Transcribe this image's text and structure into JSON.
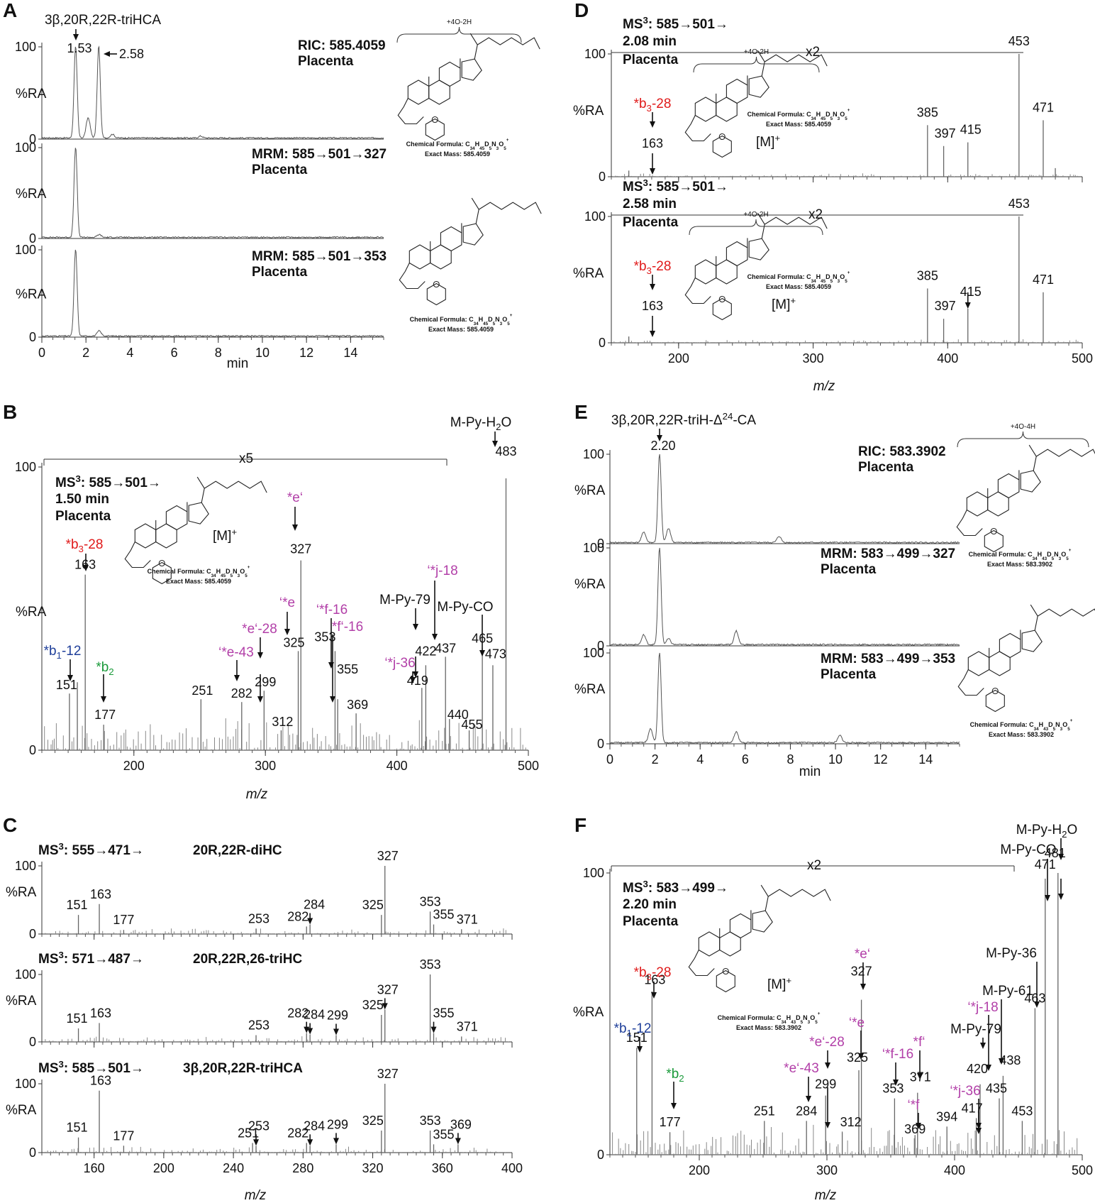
{
  "figure": {
    "panels": [
      {
        "letter": "A"
      },
      {
        "letter": "B"
      },
      {
        "letter": "C"
      },
      {
        "letter": "D"
      },
      {
        "letter": "E"
      },
      {
        "letter": "F"
      }
    ]
  },
  "chart_data": [
    {
      "panel": "A",
      "type": "line",
      "xlabel": "min",
      "ylabel": "%RA",
      "xlim": [
        0,
        15.5
      ],
      "ylim": [
        0,
        100
      ],
      "xticks": [
        0,
        2,
        4,
        6,
        8,
        10,
        12,
        14
      ],
      "compound": "3β,20R,22R-triHCA",
      "traces": [
        {
          "title_lines": [
            "RIC: 585.4059",
            "Placenta"
          ],
          "peaks": [
            [
              1.53,
              100,
              "1.53"
            ],
            [
              2.58,
              100,
              "2.58"
            ],
            [
              2.1,
              22,
              ""
            ],
            [
              3.2,
              4,
              ""
            ],
            [
              7.2,
              2,
              ""
            ]
          ]
        },
        {
          "title_lines": [
            "MRM: 585→501→327",
            "Placenta"
          ],
          "peaks": [
            [
              1.53,
              100,
              ""
            ],
            [
              2.6,
              3,
              ""
            ]
          ]
        },
        {
          "title_lines": [
            "MRM: 585→501→353",
            "Placenta"
          ],
          "peaks": [
            [
              1.53,
              100,
              ""
            ],
            [
              2.6,
              6,
              ""
            ]
          ]
        }
      ],
      "structures": [
        {
          "formula": "Chemical Formula: C34H45D5N3O5+",
          "mass": "Exact Mass: 585.4059",
          "bracket": "+4O-2H"
        },
        {
          "formula": "Chemical Formula: C34H45D5N3O5+",
          "mass": "Exact Mass: 585.4059"
        }
      ]
    },
    {
      "panel": "B",
      "type": "bar",
      "title_lines": [
        "MS3: 585→501→",
        "1.50 min",
        "Placenta"
      ],
      "xlabel": "m/z",
      "ylabel": "%RA",
      "xlim": [
        130,
        500
      ],
      "ylim": [
        0,
        100
      ],
      "xticks": [
        200,
        300,
        400,
        500
      ],
      "magnification": "x5",
      "mion": "[M]+",
      "formula": "Chemical Formula: C34H45D5N3O5+",
      "mass": "Exact Mass: 585.4059",
      "peaks": [
        {
          "mz": 151,
          "y": 20,
          "label": "151"
        },
        {
          "mz": 157,
          "y": 24,
          "label": ""
        },
        {
          "mz": 163,
          "y": 62,
          "label": "163"
        },
        {
          "mz": 177,
          "y": 9,
          "label": "177"
        },
        {
          "mz": 251,
          "y": 18,
          "label": "251"
        },
        {
          "mz": 282,
          "y": 17,
          "label": "282"
        },
        {
          "mz": 299,
          "y": 21,
          "label": "299"
        },
        {
          "mz": 312,
          "y": 7,
          "label": "312"
        },
        {
          "mz": 325,
          "y": 35,
          "label": "325"
        },
        {
          "mz": 327,
          "y": 67,
          "label": "327"
        },
        {
          "mz": 353,
          "y": 35,
          "label": "353"
        },
        {
          "mz": 355,
          "y": 18,
          "label": "355"
        },
        {
          "mz": 369,
          "y": 13,
          "label": "369"
        },
        {
          "mz": 419,
          "y": 22,
          "label": "419"
        },
        {
          "mz": 422,
          "y": 30,
          "label": "422"
        },
        {
          "mz": 437,
          "y": 33,
          "label": "437"
        },
        {
          "mz": 440,
          "y": 11,
          "label": "440"
        },
        {
          "mz": 455,
          "y": 7,
          "label": "455"
        },
        {
          "mz": 465,
          "y": 36,
          "label": "465"
        },
        {
          "mz": 473,
          "y": 30,
          "label": "473"
        },
        {
          "mz": 483,
          "y": 96,
          "label": "483"
        }
      ],
      "annotations": [
        {
          "text": "*b1-12",
          "color": "#1f3f9a"
        },
        {
          "text": "*b2",
          "color": "#1a9a3a"
        },
        {
          "text": "*b3-28",
          "color": "#e01a1a"
        },
        {
          "text": "'*e-43",
          "color": "#b23fa8"
        },
        {
          "text": "*e'-28",
          "color": "#b23fa8"
        },
        {
          "text": "'*e",
          "color": "#b23fa8"
        },
        {
          "text": "*e'",
          "color": "#b23fa8"
        },
        {
          "text": "'*f-16",
          "color": "#b23fa8"
        },
        {
          "text": "*f'-16",
          "color": "#b23fa8"
        },
        {
          "text": "'*j-36",
          "color": "#b23fa8"
        },
        {
          "text": "'*j-18",
          "color": "#b23fa8"
        },
        {
          "text": "M-Py-79",
          "color": "#111111"
        },
        {
          "text": "M-Py-CO",
          "color": "#111111"
        },
        {
          "text": "M-Py-H2O",
          "color": "#111111"
        }
      ]
    },
    {
      "panel": "C",
      "type": "bar",
      "xlabel": "m/z",
      "ylabel": "%RA",
      "xlim": [
        130,
        400
      ],
      "ylim": [
        0,
        100
      ],
      "xticks": [
        160,
        200,
        240,
        280,
        320,
        360,
        400
      ],
      "spectra": [
        {
          "title": "MS3: 555→471→",
          "name": "20R,22R-diHC",
          "peaks": [
            [
              151,
              28,
              "151"
            ],
            [
              163,
              44,
              "163"
            ],
            [
              177,
              6,
              "177"
            ],
            [
              253,
              8,
              "253"
            ],
            [
              282,
              11,
              "282"
            ],
            [
              284,
              14,
              "284"
            ],
            [
              325,
              28,
              "325"
            ],
            [
              327,
              100,
              "327"
            ],
            [
              353,
              33,
              "353"
            ],
            [
              355,
              14,
              "355"
            ],
            [
              371,
              7,
              "371"
            ]
          ]
        },
        {
          "title": "MS3: 571→487→",
          "name": "20R,22R,26-triHC",
          "peaks": [
            [
              151,
              20,
              "151"
            ],
            [
              163,
              28,
              "163"
            ],
            [
              253,
              10,
              "253"
            ],
            [
              282,
              13,
              "282"
            ],
            [
              284,
              11,
              "284"
            ],
            [
              299,
              10,
              "299"
            ],
            [
              325,
              40,
              "325"
            ],
            [
              327,
              48,
              "327"
            ],
            [
              353,
              100,
              "353"
            ],
            [
              355,
              13,
              "355"
            ],
            [
              371,
              8,
              "371"
            ]
          ]
        },
        {
          "title": "MS3: 585→501→",
          "name": "3β,20R,22R-triHCA",
          "peaks": [
            [
              151,
              22,
              "151"
            ],
            [
              163,
              90,
              "163"
            ],
            [
              177,
              10,
              "177"
            ],
            [
              251,
              14,
              "251"
            ],
            [
              253,
              10,
              "253"
            ],
            [
              282,
              14,
              "282"
            ],
            [
              284,
              10,
              "284"
            ],
            [
              299,
              12,
              "299"
            ],
            [
              325,
              32,
              "325"
            ],
            [
              327,
              100,
              "327"
            ],
            [
              353,
              32,
              "353"
            ],
            [
              355,
              12,
              "355"
            ],
            [
              369,
              12,
              "369"
            ]
          ]
        }
      ]
    },
    {
      "panel": "D",
      "type": "bar",
      "xlabel": "m/z",
      "ylabel": "%RA",
      "xlim": [
        150,
        500
      ],
      "ylim": [
        0,
        100
      ],
      "xticks": [
        200,
        300,
        400,
        500
      ],
      "spectra": [
        {
          "title_lines": [
            "MS3: 585→501→",
            "2.08 min",
            "Placenta"
          ],
          "magnification": "x2",
          "mion": "[M]+",
          "formula": "Chemical Formula: C34H45D5N3O5+",
          "mass": "Exact Mass: 585.4059",
          "bracket": "+4O-2H",
          "annotation": {
            "text": "*b3-28",
            "color": "#e01a1a"
          },
          "peaks": [
            [
              163,
              5,
              "163"
            ],
            [
              385,
              42,
              "385"
            ],
            [
              397,
              25,
              "397"
            ],
            [
              415,
              28,
              "415"
            ],
            [
              453,
              100,
              "453"
            ],
            [
              471,
              46,
              "471"
            ],
            [
              480,
              7,
              ""
            ]
          ]
        },
        {
          "title_lines": [
            "MS3: 585→501→",
            "2.58 min",
            "Placenta"
          ],
          "magnification": "x2",
          "mion": "[M]+",
          "formula": "Chemical Formula: C34H45D5N3O5+",
          "mass": "Exact Mass: 585.4059",
          "bracket": "+4O-2H",
          "annotation": {
            "text": "*b3-28",
            "color": "#e01a1a"
          },
          "peaks": [
            [
              163,
              5,
              "163"
            ],
            [
              385,
              43,
              "385"
            ],
            [
              397,
              19,
              "397"
            ],
            [
              415,
              27,
              "415"
            ],
            [
              453,
              100,
              "453"
            ],
            [
              471,
              40,
              "471"
            ]
          ]
        }
      ]
    },
    {
      "panel": "E",
      "type": "line",
      "xlabel": "min",
      "ylabel": "%RA",
      "xlim": [
        0,
        15.5
      ],
      "ylim": [
        0,
        100
      ],
      "xticks": [
        0,
        2,
        4,
        6,
        8,
        10,
        12,
        14
      ],
      "compound": "3β,20R,22R-triH-Δ24-CA",
      "traces": [
        {
          "title_lines": [
            "RIC: 583.3902",
            "Placenta"
          ],
          "peaks": [
            [
              2.2,
              100,
              "2.20"
            ],
            [
              1.5,
              12,
              ""
            ],
            [
              2.6,
              16,
              ""
            ],
            [
              7.5,
              7,
              ""
            ]
          ]
        },
        {
          "title_lines": [
            "MRM: 583→499→327",
            "Placenta"
          ],
          "peaks": [
            [
              2.2,
              100,
              ""
            ],
            [
              1.5,
              10,
              ""
            ],
            [
              5.6,
              14,
              ""
            ],
            [
              2.6,
              6,
              ""
            ]
          ]
        },
        {
          "title_lines": [
            "MRM: 583→499→353",
            "Placenta"
          ],
          "peaks": [
            [
              2.2,
              100,
              ""
            ],
            [
              1.8,
              15,
              ""
            ],
            [
              5.6,
              12,
              ""
            ],
            [
              10.2,
              8,
              ""
            ]
          ]
        }
      ],
      "structures": [
        {
          "formula": "Chemical Formula: C34H43D5N3O5+",
          "mass": "Exact Mass: 583.3902",
          "bracket": "+4O-4H"
        },
        {
          "formula": "Chemical Formula: C34H43D5N3O5+",
          "mass": "Exact Mass: 583.3902"
        }
      ]
    },
    {
      "panel": "F",
      "type": "bar",
      "title_lines": [
        "MS3: 583→499→",
        "2.20 min",
        "Placenta"
      ],
      "xlabel": "m/z",
      "ylabel": "%RA",
      "xlim": [
        130,
        500
      ],
      "ylim": [
        0,
        100
      ],
      "xticks": [
        200,
        300,
        400,
        500
      ],
      "magnification": "x2",
      "mion": "[M]+",
      "formula": "Chemical Formula: C34H43D5N3O5+",
      "mass": "Exact Mass: 583.3902",
      "peaks": [
        {
          "mz": 151,
          "y": 38,
          "label": "151"
        },
        {
          "mz": 163,
          "y": 58,
          "label": "163"
        },
        {
          "mz": 177,
          "y": 8,
          "label": "177"
        },
        {
          "mz": 251,
          "y": 12,
          "label": "251"
        },
        {
          "mz": 284,
          "y": 12,
          "label": "284"
        },
        {
          "mz": 299,
          "y": 21,
          "label": "299"
        },
        {
          "mz": 312,
          "y": 8,
          "label": "312"
        },
        {
          "mz": 325,
          "y": 30,
          "label": "325"
        },
        {
          "mz": 327,
          "y": 55,
          "label": "327"
        },
        {
          "mz": 353,
          "y": 20,
          "label": "353"
        },
        {
          "mz": 369,
          "y": 7,
          "label": "369"
        },
        {
          "mz": 371,
          "y": 22,
          "label": "371"
        },
        {
          "mz": 394,
          "y": 10,
          "label": "394"
        },
        {
          "mz": 417,
          "y": 13,
          "label": "417"
        },
        {
          "mz": 420,
          "y": 25,
          "label": "420"
        },
        {
          "mz": 435,
          "y": 20,
          "label": "435"
        },
        {
          "mz": 438,
          "y": 28,
          "label": "438"
        },
        {
          "mz": 453,
          "y": 12,
          "label": "453"
        },
        {
          "mz": 463,
          "y": 52,
          "label": "463"
        },
        {
          "mz": 471,
          "y": 98,
          "label": "471"
        },
        {
          "mz": 481,
          "y": 100,
          "label": "481"
        }
      ],
      "annotations": [
        {
          "text": "*b1-12",
          "color": "#1f3f9a"
        },
        {
          "text": "*b2",
          "color": "#1a9a3a"
        },
        {
          "text": "*b3-28",
          "color": "#e01a1a"
        },
        {
          "text": "*e'-43",
          "color": "#b23fa8"
        },
        {
          "text": "*e'-28",
          "color": "#b23fa8"
        },
        {
          "text": "'*e",
          "color": "#b23fa8"
        },
        {
          "text": "*e'",
          "color": "#b23fa8"
        },
        {
          "text": "'*f-16",
          "color": "#b23fa8"
        },
        {
          "text": "'*f",
          "color": "#b23fa8"
        },
        {
          "text": "*f'",
          "color": "#b23fa8"
        },
        {
          "text": "'*j-36",
          "color": "#b23fa8"
        },
        {
          "text": "'*j-18",
          "color": "#b23fa8"
        },
        {
          "text": "M-Py-79",
          "color": "#111111"
        },
        {
          "text": "M-Py-61",
          "color": "#111111"
        },
        {
          "text": "M-Py-36",
          "color": "#111111"
        },
        {
          "text": "M-Py-CO",
          "color": "#111111"
        },
        {
          "text": "M-Py-H2O",
          "color": "#111111"
        }
      ]
    }
  ]
}
